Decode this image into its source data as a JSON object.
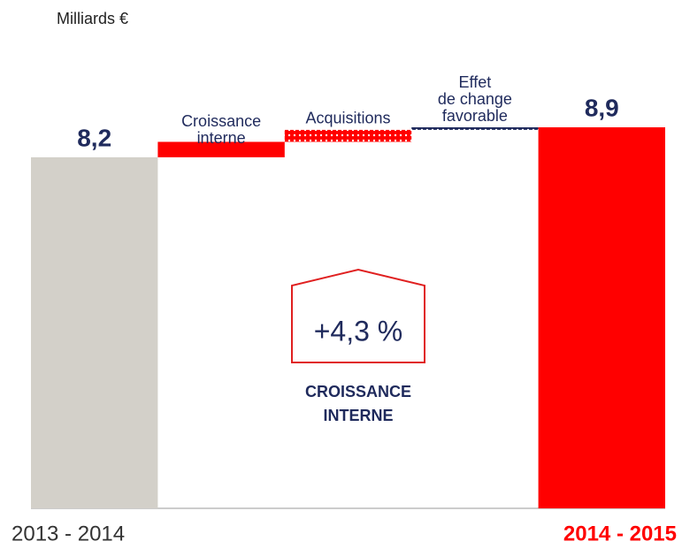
{
  "chart_data": {
    "type": "waterfall",
    "unit_label": "Milliards €",
    "bars": [
      {
        "category": "2013 - 2014",
        "value": 8.2,
        "value_label": "8,2",
        "kind": "total",
        "color": "#d3d0c9"
      },
      {
        "name": [
          "Croissance",
          "interne"
        ],
        "value": 0.36,
        "kind": "step",
        "color": "#ff0000"
      },
      {
        "name": [
          "Acquisitions"
        ],
        "value": 0.28,
        "kind": "step",
        "color": "#ff0000",
        "pattern": "dots"
      },
      {
        "name": [
          "Effet",
          "de change",
          "favorable"
        ],
        "value": 0.06,
        "kind": "step",
        "color": "#1f2a5c",
        "pattern": "dots"
      },
      {
        "category": "2014 - 2015",
        "value": 8.9,
        "value_label": "8,9",
        "kind": "total",
        "color": "#ff0000"
      }
    ],
    "annotation": {
      "text": "+4,3 %",
      "caption": [
        "CROISSANCE",
        "INTERNE"
      ]
    }
  }
}
